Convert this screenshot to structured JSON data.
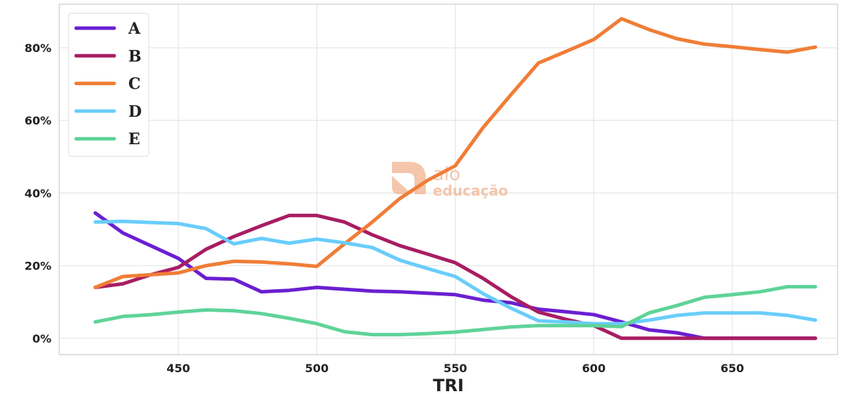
{
  "chart_data": {
    "type": "line",
    "title": "",
    "xlabel": "TRI",
    "ylabel": "",
    "x": [
      420,
      430,
      440,
      450,
      460,
      470,
      480,
      490,
      500,
      510,
      520,
      530,
      540,
      550,
      560,
      570,
      580,
      590,
      600,
      610,
      620,
      630,
      640,
      650,
      660,
      670,
      680
    ],
    "xlim": [
      407,
      688
    ],
    "ylim": [
      -4.5,
      92
    ],
    "x_ticks": [
      450,
      500,
      550,
      600,
      650
    ],
    "x_tick_labels": [
      "450",
      "500",
      "550",
      "600",
      "650"
    ],
    "y_ticks": [
      0,
      20,
      40,
      60,
      80
    ],
    "y_tick_labels": [
      "0%",
      "20%",
      "40%",
      "60%",
      "80%"
    ],
    "grid": true,
    "legend_position": "top-left",
    "series": [
      {
        "name": "A",
        "color": "#6a1fd1",
        "values": [
          34.5,
          29,
          25.5,
          22,
          16.5,
          16.3,
          12.8,
          13.2,
          14,
          13.5,
          13,
          12.8,
          12.4,
          12,
          10.5,
          9.8,
          8,
          7.3,
          6.5,
          4.5,
          2.3,
          1.5,
          0,
          0,
          0,
          0,
          0
        ]
      },
      {
        "name": "B",
        "color": "#a81d62",
        "values": [
          14,
          15,
          17.5,
          19.5,
          24.5,
          28,
          31,
          33.8,
          33.8,
          32,
          28.5,
          25.5,
          23.2,
          20.8,
          16.5,
          11.5,
          7.2,
          5.2,
          3.5,
          0,
          0,
          0,
          0,
          0,
          0,
          0,
          0
        ]
      },
      {
        "name": "C",
        "color": "#f07d36",
        "values": [
          14,
          17,
          17.5,
          18,
          20,
          21.2,
          21,
          20.5,
          19.8,
          26,
          32,
          38.5,
          43.5,
          47.5,
          58,
          67,
          75.8,
          79,
          82.3,
          88,
          85,
          82.5,
          81,
          80.3,
          79.5,
          78.8,
          80.2
        ]
      },
      {
        "name": "D",
        "color": "#69cdfb",
        "values": [
          32,
          32.2,
          31.9,
          31.6,
          30.2,
          26,
          27.5,
          26.2,
          27.3,
          26.3,
          25,
          21.5,
          19.2,
          17,
          12.3,
          8.3,
          4.8,
          4.5,
          4,
          4,
          5,
          6.3,
          7,
          7,
          7,
          6.3,
          5
        ]
      },
      {
        "name": "E",
        "color": "#5fd399",
        "values": [
          4.5,
          6,
          6.5,
          7.2,
          7.8,
          7.6,
          6.8,
          5.5,
          4,
          1.8,
          1,
          1,
          1.3,
          1.7,
          2.4,
          3.1,
          3.5,
          3.5,
          3.5,
          3.2,
          7,
          9,
          11.3,
          12,
          12.8,
          14.2,
          14.2
        ]
      }
    ]
  },
  "watermark": {
    "line1": "alo",
    "line2": "educação"
  }
}
